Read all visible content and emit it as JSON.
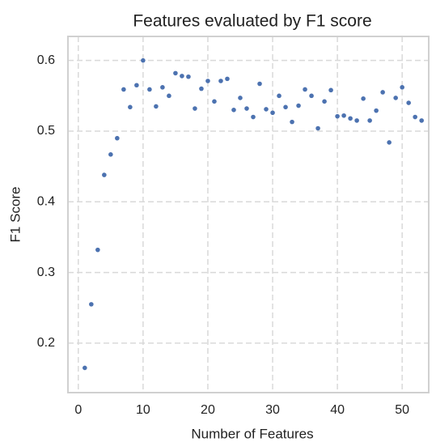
{
  "chart_data": {
    "type": "scatter",
    "title": "Features evaluated by F1 score",
    "x_label": "Number of Features",
    "y_label": "F1 Score",
    "color": "#4c72b0",
    "grid": true,
    "xlim": [
      -1.6,
      54.1
    ],
    "ylim": [
      0.13,
      0.634
    ],
    "xticks": [
      0,
      10,
      20,
      30,
      40,
      50
    ],
    "yticks": [
      0.2,
      0.3,
      0.4,
      0.5,
      0.6
    ],
    "x": [
      1,
      2,
      3,
      4,
      5,
      6,
      7,
      8,
      9,
      10,
      11,
      12,
      13,
      14,
      15,
      16,
      17,
      18,
      19,
      20,
      21,
      22,
      23,
      24,
      25,
      26,
      27,
      28,
      29,
      30,
      31,
      32,
      33,
      34,
      35,
      36,
      37,
      38,
      39,
      40,
      41,
      42,
      43,
      44,
      45,
      46,
      47,
      48,
      49,
      50,
      51,
      52,
      53
    ],
    "values": [
      0.165,
      0.255,
      0.332,
      0.438,
      0.467,
      0.49,
      0.559,
      0.534,
      0.565,
      0.6,
      0.559,
      0.535,
      0.562,
      0.55,
      0.582,
      0.578,
      0.577,
      0.532,
      0.56,
      0.571,
      0.542,
      0.571,
      0.574,
      0.53,
      0.547,
      0.532,
      0.52,
      0.567,
      0.531,
      0.526,
      0.55,
      0.534,
      0.513,
      0.536,
      0.559,
      0.55,
      0.504,
      0.542,
      0.558,
      0.521,
      0.522,
      0.518,
      0.515,
      0.546,
      0.515,
      0.529,
      0.555,
      0.484,
      0.547,
      0.562,
      0.54,
      0.52,
      0.515
    ]
  }
}
